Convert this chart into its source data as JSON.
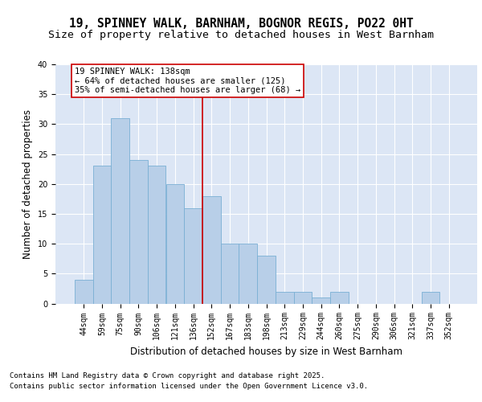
{
  "title_line1": "19, SPINNEY WALK, BARNHAM, BOGNOR REGIS, PO22 0HT",
  "title_line2": "Size of property relative to detached houses in West Barnham",
  "xlabel": "Distribution of detached houses by size in West Barnham",
  "ylabel": "Number of detached properties",
  "categories": [
    "44sqm",
    "59sqm",
    "75sqm",
    "90sqm",
    "106sqm",
    "121sqm",
    "136sqm",
    "152sqm",
    "167sqm",
    "183sqm",
    "198sqm",
    "213sqm",
    "229sqm",
    "244sqm",
    "260sqm",
    "275sqm",
    "290sqm",
    "306sqm",
    "321sqm",
    "337sqm",
    "352sqm"
  ],
  "values": [
    4,
    23,
    31,
    24,
    23,
    20,
    16,
    18,
    10,
    10,
    8,
    2,
    2,
    1,
    2,
    0,
    0,
    0,
    0,
    2,
    0
  ],
  "bar_color": "#b8cfe8",
  "bar_edge_color": "#7aafd4",
  "background_color": "#dce6f5",
  "grid_color": "#ffffff",
  "vline_color": "#cc0000",
  "vline_x_index": 6,
  "annotation_text": "19 SPINNEY WALK: 138sqm\n← 64% of detached houses are smaller (125)\n35% of semi-detached houses are larger (68) →",
  "annotation_box_color": "#ffffff",
  "annotation_box_edge": "#cc0000",
  "footer_line1": "Contains HM Land Registry data © Crown copyright and database right 2025.",
  "footer_line2": "Contains public sector information licensed under the Open Government Licence v3.0.",
  "ylim": [
    0,
    40
  ],
  "yticks": [
    0,
    5,
    10,
    15,
    20,
    25,
    30,
    35,
    40
  ],
  "title_fontsize": 10.5,
  "subtitle_fontsize": 9.5,
  "ylabel_fontsize": 8.5,
  "xlabel_fontsize": 8.5,
  "tick_fontsize": 7,
  "annotation_fontsize": 7.5,
  "footer_fontsize": 6.5
}
